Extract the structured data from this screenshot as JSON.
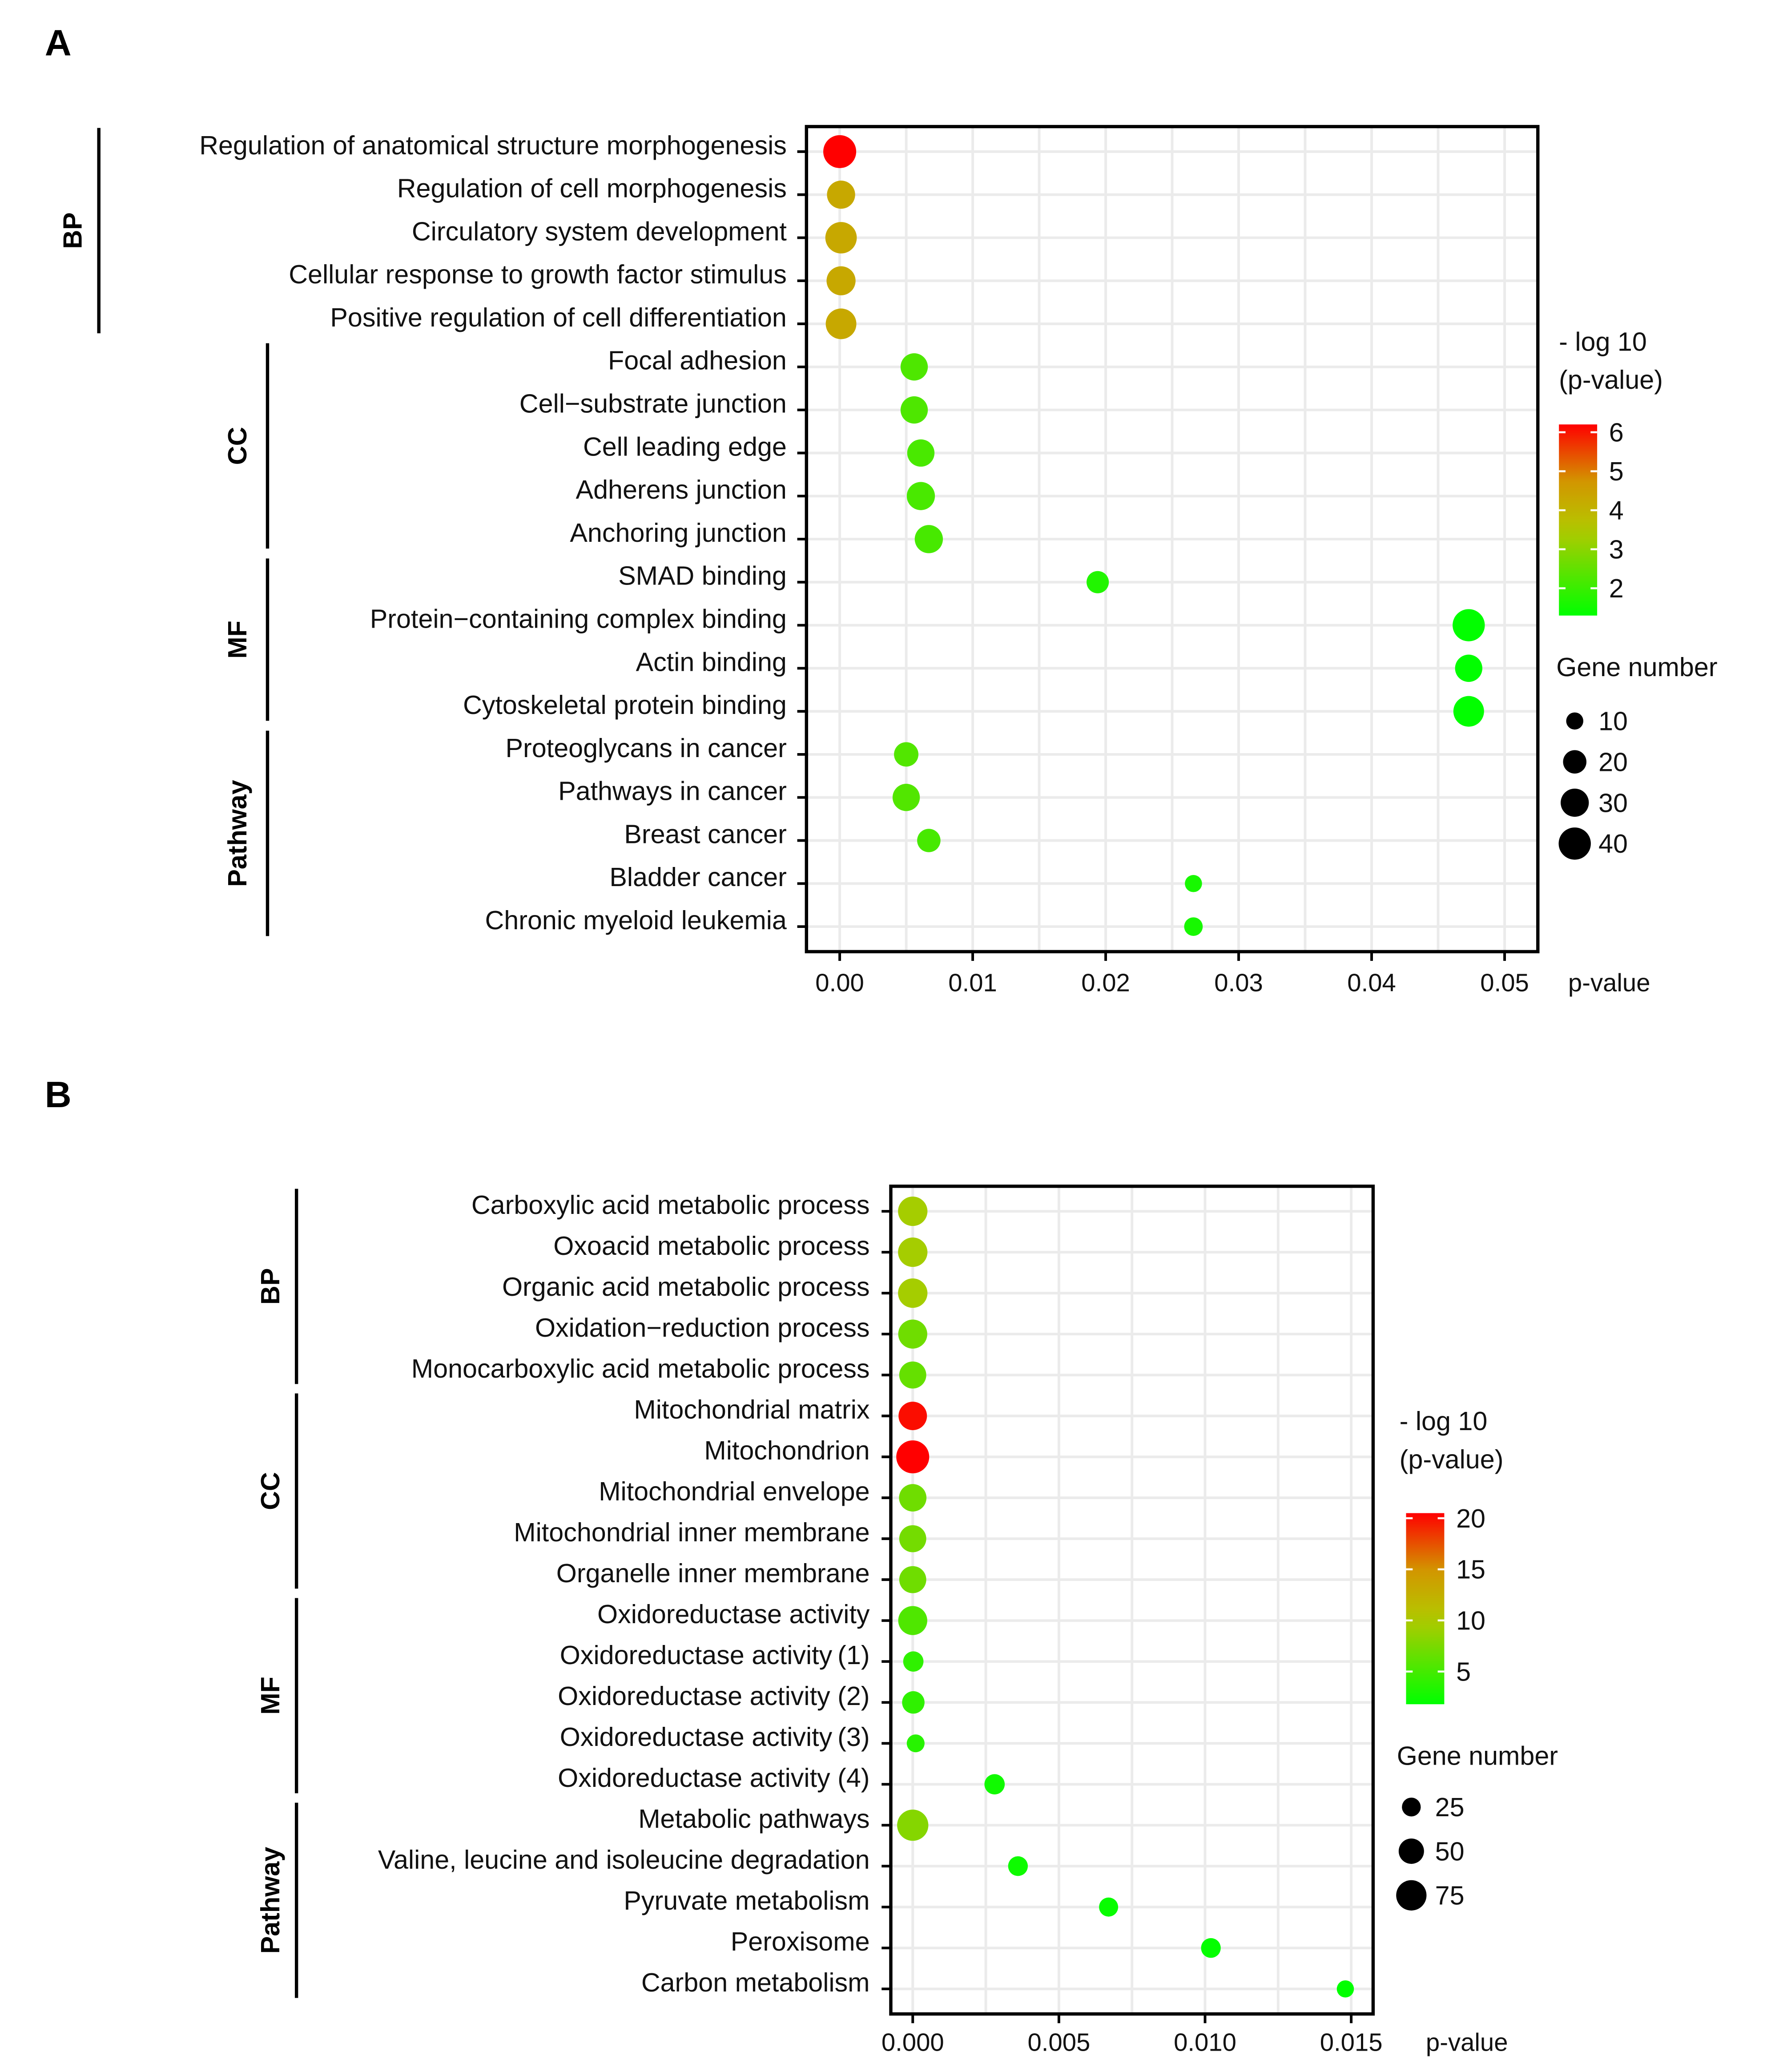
{
  "chart_data": [
    {
      "type": "scatter",
      "panel": "A",
      "xlabel": "p-value",
      "xlim": [
        -0.0025,
        0.0525
      ],
      "xticks": [
        "0.00",
        "0.01",
        "0.02",
        "0.03",
        "0.04",
        "0.05"
      ],
      "xtick_values": [
        0,
        0.01,
        0.02,
        0.03,
        0.04,
        0.05
      ],
      "color_legend": {
        "title": [
          "- log 10",
          "(p-value)"
        ],
        "ticks": [
          6,
          5,
          4,
          3,
          2
        ],
        "range": [
          1.3,
          6.2
        ]
      },
      "size_legend": {
        "title": "Gene number",
        "values": [
          10,
          20,
          30,
          40
        ]
      },
      "groups": [
        {
          "name": "BP",
          "items": [
            {
              "term": "Regulation of anatomical structure morphogenesis",
              "p": 0.0,
              "neglog10": 6.2,
              "genes": 42
            },
            {
              "term": "Regulation of cell morphogenesis",
              "p": 0.0001,
              "neglog10": 4.3,
              "genes": 30
            },
            {
              "term": "Circulatory system development",
              "p": 0.0001,
              "neglog10": 4.3,
              "genes": 38
            },
            {
              "term": "Cellular response to growth factor stimulus",
              "p": 0.0001,
              "neglog10": 4.3,
              "genes": 32
            },
            {
              "term": "Positive regulation of cell differentiation",
              "p": 0.0001,
              "neglog10": 4.3,
              "genes": 36
            }
          ]
        },
        {
          "name": "CC",
          "items": [
            {
              "term": "Focal adhesion",
              "p": 0.0056,
              "neglog10": 2.25,
              "genes": 28
            },
            {
              "term": "Cell−substrate junction",
              "p": 0.0056,
              "neglog10": 2.25,
              "genes": 28
            },
            {
              "term": "Cell leading edge",
              "p": 0.0061,
              "neglog10": 2.2,
              "genes": 28
            },
            {
              "term": "Adherens junction",
              "p": 0.0061,
              "neglog10": 2.2,
              "genes": 30
            },
            {
              "term": "Anchoring junction",
              "p": 0.0067,
              "neglog10": 2.17,
              "genes": 30
            }
          ]
        },
        {
          "name": "MF",
          "items": [
            {
              "term": "SMAD binding",
              "p": 0.0194,
              "neglog10": 1.71,
              "genes": 18
            },
            {
              "term": "Protein−containing complex binding",
              "p": 0.0473,
              "neglog10": 1.33,
              "genes": 40
            },
            {
              "term": "Actin binding",
              "p": 0.0473,
              "neglog10": 1.33,
              "genes": 28
            },
            {
              "term": "Cytoskeletal protein binding",
              "p": 0.0473,
              "neglog10": 1.33,
              "genes": 36
            }
          ]
        },
        {
          "name": "Pathway",
          "items": [
            {
              "term": "Proteoglycans in cancer",
              "p": 0.005,
              "neglog10": 2.3,
              "genes": 22
            },
            {
              "term": "Pathways in cancer",
              "p": 0.005,
              "neglog10": 2.3,
              "genes": 28
            },
            {
              "term": "Breast cancer",
              "p": 0.0067,
              "neglog10": 2.17,
              "genes": 20
            },
            {
              "term": "Bladder cancer",
              "p": 0.0266,
              "neglog10": 1.58,
              "genes": 10
            },
            {
              "term": "Chronic myeloid leukemia",
              "p": 0.0266,
              "neglog10": 1.58,
              "genes": 12
            }
          ]
        }
      ]
    },
    {
      "type": "scatter",
      "panel": "B",
      "xlabel": "p-value",
      "xlim": [
        -0.00075,
        0.01575
      ],
      "xticks": [
        "0.000",
        "0.005",
        "0.010",
        "0.015"
      ],
      "xtick_values": [
        0,
        0.005,
        0.01,
        0.015
      ],
      "color_legend": {
        "title": [
          "- log 10",
          "(p-value)"
        ],
        "ticks": [
          20,
          15,
          10,
          5
        ],
        "range": [
          1.8,
          20.5
        ]
      },
      "size_legend": {
        "title": "Gene number",
        "values": [
          25,
          50,
          75
        ]
      },
      "groups": [
        {
          "name": "BP",
          "items": [
            {
              "term": "Carboxylic acid metabolic process",
              "p": 0.0,
              "neglog10": 9.5,
              "genes": 70
            },
            {
              "term": "Oxoacid metabolic process",
              "p": 0.0,
              "neglog10": 9.5,
              "genes": 70
            },
            {
              "term": "Organic acid metabolic process",
              "p": 0.0,
              "neglog10": 9.5,
              "genes": 70
            },
            {
              "term": "Oxidation−reduction process",
              "p": 0.0,
              "neglog10": 7.0,
              "genes": 68
            },
            {
              "term": "Monocarboxylic acid metabolic process",
              "p": 0.0,
              "neglog10": 6.5,
              "genes": 58
            }
          ]
        },
        {
          "name": "CC",
          "items": [
            {
              "term": "Mitochondrial matrix",
              "p": 0.0,
              "neglog10": 20.0,
              "genes": 65
            },
            {
              "term": "Mitochondrion",
              "p": 0.0,
              "neglog10": 20.5,
              "genes": 90
            },
            {
              "term": "Mitochondrial envelope",
              "p": 0.0,
              "neglog10": 7.0,
              "genes": 60
            },
            {
              "term": "Mitochondrial inner membrane",
              "p": 0.0,
              "neglog10": 7.2,
              "genes": 58
            },
            {
              "term": "Organelle inner membrane",
              "p": 0.0,
              "neglog10": 7.0,
              "genes": 58
            }
          ]
        },
        {
          "name": "MF",
          "items": [
            {
              "term": "Oxidoreductase activity",
              "p": 0.0,
              "neglog10": 5.5,
              "genes": 68
            },
            {
              "term": "Oxidoreductase activity (1)",
              "p": 2e-05,
              "neglog10": 4.0,
              "genes": 30
            },
            {
              "term": "Oxidoreductase activity (2)",
              "p": 2e-05,
              "neglog10": 4.0,
              "genes": 38
            },
            {
              "term": "Oxidoreductase activity (3)",
              "p": 0.0001,
              "neglog10": 3.6,
              "genes": 22
            },
            {
              "term": "Oxidoreductase activity (4)",
              "p": 0.0028,
              "neglog10": 2.55,
              "genes": 30
            }
          ]
        },
        {
          "name": "Pathway",
          "items": [
            {
              "term": "Metabolic pathways",
              "p": 0.0,
              "neglog10": 8.0,
              "genes": 80
            },
            {
              "term": "Valine, leucine and isoleucine degradation",
              "p": 0.0036,
              "neglog10": 2.44,
              "genes": 28
            },
            {
              "term": "Pyruvate metabolism",
              "p": 0.0067,
              "neglog10": 2.17,
              "genes": 26
            },
            {
              "term": "Peroxisome",
              "p": 0.0102,
              "neglog10": 1.99,
              "genes": 28
            },
            {
              "term": "Carbon metabolism",
              "p": 0.0148,
              "neglog10": 1.83,
              "genes": 20
            }
          ]
        }
      ]
    }
  ],
  "panel_labels": [
    "A",
    "B"
  ]
}
